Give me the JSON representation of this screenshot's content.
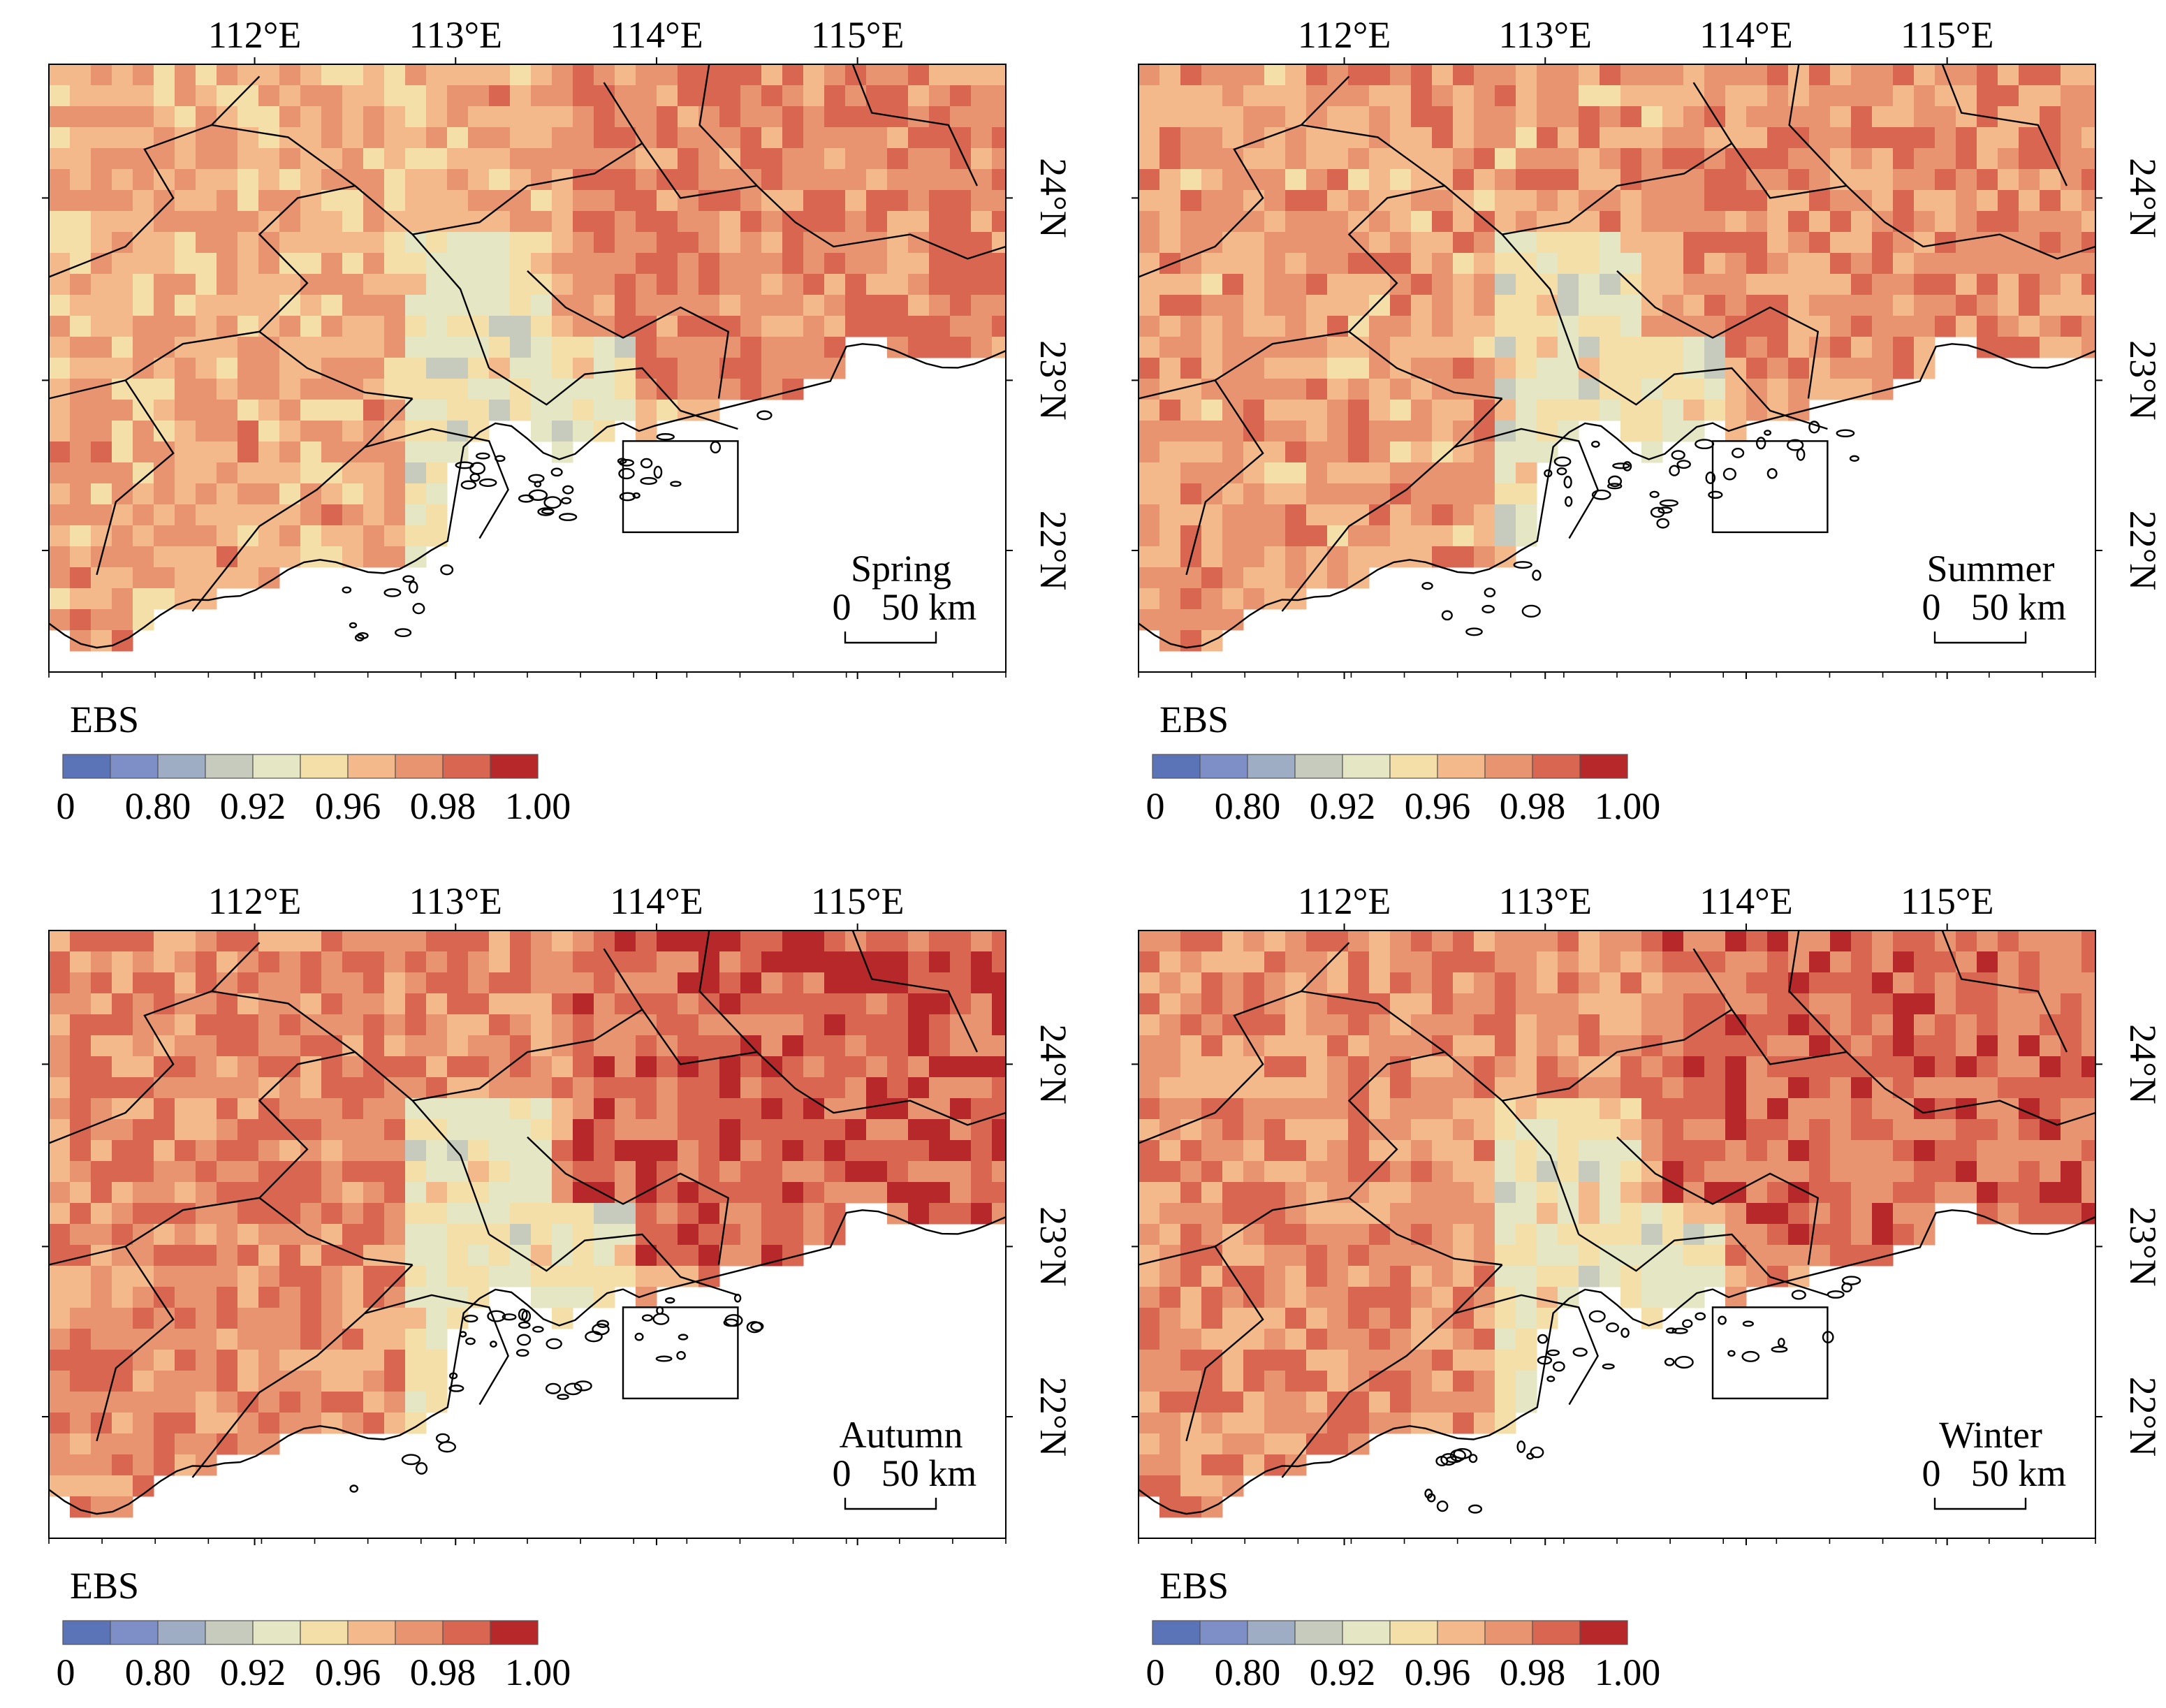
{
  "figure": {
    "x_ticks": [
      "112°E",
      "113°E",
      "114°E",
      "115°E"
    ],
    "y_ticks": [
      "24°N",
      "23°N",
      "22°N"
    ],
    "scale_bar": {
      "start": "0",
      "end": "50 km"
    },
    "legend": {
      "title": "EBS",
      "ticks": [
        "0",
        "0.80",
        "0.92",
        "0.96",
        "0.98",
        "1.00"
      ],
      "colors": [
        "#5b74b8",
        "#7d8fc6",
        "#9fadc4",
        "#c6cbbd",
        "#e4e6c4",
        "#f5dfa8",
        "#f3b98b",
        "#e99470",
        "#d86650",
        "#b7282a"
      ]
    },
    "panels": [
      {
        "season": "Spring"
      },
      {
        "season": "Summer"
      },
      {
        "season": "Autumn"
      },
      {
        "season": "Winter"
      }
    ]
  }
}
